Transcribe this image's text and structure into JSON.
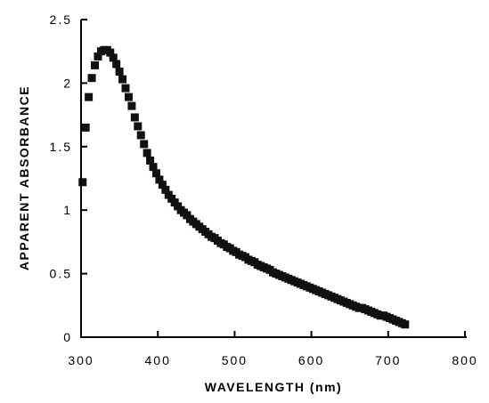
{
  "chart_data": {
    "type": "scatter",
    "title": "",
    "xlabel": "WAVELENGTH (nm)",
    "ylabel": "APPARENT ABSORBANCE",
    "xlim": [
      300,
      800
    ],
    "ylim": [
      0,
      2.5
    ],
    "x_ticks": [
      300,
      400,
      500,
      600,
      700,
      800
    ],
    "y_ticks": [
      0,
      0.5,
      1,
      1.5,
      2,
      2.5
    ],
    "x_tick_labels": [
      "300",
      "400",
      "500",
      "600",
      "700",
      "800"
    ],
    "y_tick_labels": [
      "0",
      "0.5",
      "1",
      "1.5",
      "2",
      "2.5"
    ],
    "marker": "square",
    "grid": false,
    "series": [
      {
        "x": [
          302,
          306,
          310,
          314,
          318,
          322,
          326,
          330,
          334,
          338,
          342,
          346,
          350,
          354,
          358,
          362,
          366,
          370,
          374,
          378,
          382,
          386,
          390,
          394,
          398,
          402,
          406,
          410,
          414,
          418,
          422,
          426,
          430,
          434,
          438,
          442,
          446,
          450,
          454,
          458,
          462,
          466,
          470,
          474,
          478,
          482,
          486,
          490,
          494,
          498,
          502,
          506,
          510,
          514,
          518,
          522,
          526,
          530,
          534,
          538,
          542,
          546,
          550,
          554,
          558,
          562,
          566,
          570,
          574,
          578,
          582,
          586,
          590,
          594,
          598,
          602,
          606,
          610,
          614,
          618,
          622,
          626,
          630,
          634,
          638,
          642,
          646,
          650,
          654,
          658,
          662,
          666,
          670,
          674,
          678,
          682,
          686,
          690,
          694,
          698,
          702,
          706,
          710,
          714,
          718,
          722
        ],
        "y": [
          1.22,
          1.65,
          1.89,
          2.04,
          2.14,
          2.21,
          2.25,
          2.26,
          2.26,
          2.24,
          2.2,
          2.15,
          2.09,
          2.03,
          1.96,
          1.89,
          1.82,
          1.73,
          1.66,
          1.59,
          1.52,
          1.45,
          1.39,
          1.34,
          1.29,
          1.24,
          1.2,
          1.16,
          1.12,
          1.09,
          1.06,
          1.03,
          1.0,
          0.98,
          0.96,
          0.93,
          0.91,
          0.89,
          0.87,
          0.85,
          0.83,
          0.81,
          0.79,
          0.78,
          0.76,
          0.74,
          0.73,
          0.71,
          0.7,
          0.68,
          0.67,
          0.65,
          0.64,
          0.63,
          0.61,
          0.6,
          0.59,
          0.57,
          0.56,
          0.55,
          0.54,
          0.53,
          0.51,
          0.5,
          0.49,
          0.48,
          0.47,
          0.46,
          0.45,
          0.44,
          0.43,
          0.42,
          0.41,
          0.4,
          0.39,
          0.38,
          0.37,
          0.36,
          0.35,
          0.34,
          0.33,
          0.32,
          0.31,
          0.3,
          0.29,
          0.28,
          0.27,
          0.26,
          0.25,
          0.24,
          0.23,
          0.23,
          0.22,
          0.21,
          0.2,
          0.19,
          0.18,
          0.17,
          0.17,
          0.16,
          0.15,
          0.14,
          0.13,
          0.12,
          0.11,
          0.1
        ]
      }
    ]
  }
}
